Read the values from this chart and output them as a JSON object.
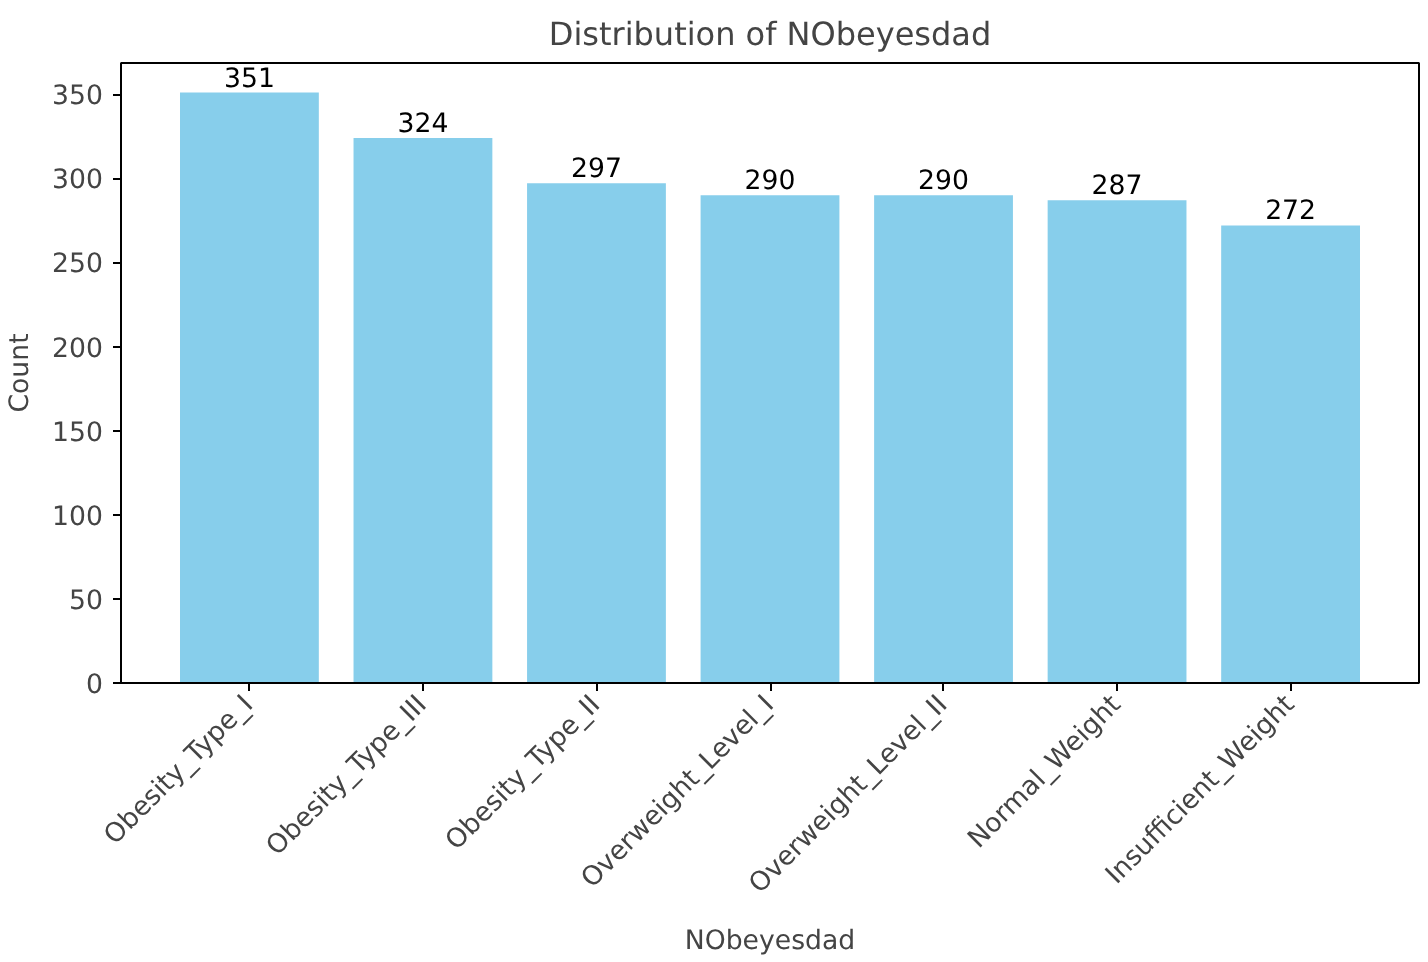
{
  "chart_data": {
    "type": "bar",
    "title": "Distribution of NObeyesdad",
    "xlabel": "NObeyesdad",
    "ylabel": "Count",
    "categories": [
      "Obesity_Type_I",
      "Obesity_Type_III",
      "Obesity_Type_II",
      "Overweight_Level_I",
      "Overweight_Level_II",
      "Normal_Weight",
      "Insufficient_Weight"
    ],
    "values": [
      351,
      324,
      297,
      290,
      290,
      287,
      272
    ],
    "color": "#87ceeb",
    "ylim": [
      0,
      368.55
    ],
    "yticks": [
      0,
      50,
      100,
      150,
      200,
      250,
      300,
      350
    ],
    "data_labels": true
  }
}
